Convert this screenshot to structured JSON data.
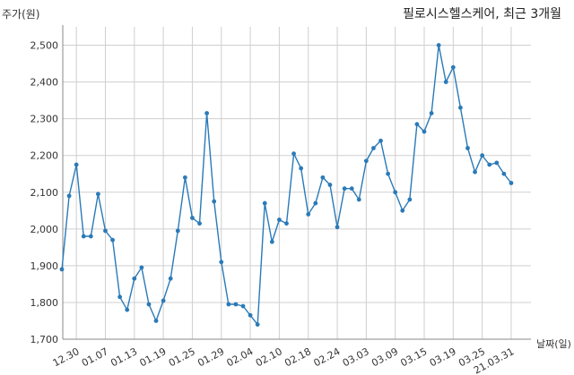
{
  "chart_data": {
    "type": "line",
    "title": "필로시스헬스케어, 최근 3개월",
    "ylabel": "주가(원)",
    "xlabel": "날짜(일)",
    "ylim": [
      1700,
      2550
    ],
    "yticks": [
      1700,
      1800,
      1900,
      2000,
      2100,
      2200,
      2300,
      2400,
      2500
    ],
    "ytick_labels": [
      "1,700",
      "1,800",
      "1,900",
      "2,000",
      "2,100",
      "2,200",
      "2,300",
      "2,400",
      "2,500"
    ],
    "xticks": [
      {
        "index": 2,
        "label": "12.30"
      },
      {
        "index": 6,
        "label": "01.07"
      },
      {
        "index": 10,
        "label": "01.13"
      },
      {
        "index": 14,
        "label": "01.19"
      },
      {
        "index": 18,
        "label": "01.25"
      },
      {
        "index": 22,
        "label": "01.29"
      },
      {
        "index": 26,
        "label": "02.04"
      },
      {
        "index": 30,
        "label": "02.10"
      },
      {
        "index": 34,
        "label": "02.18"
      },
      {
        "index": 38,
        "label": "02.24"
      },
      {
        "index": 42,
        "label": "03.03"
      },
      {
        "index": 46,
        "label": "03.09"
      },
      {
        "index": 50,
        "label": "03.15"
      },
      {
        "index": 54,
        "label": "03.19"
      },
      {
        "index": 58,
        "label": "03.25"
      },
      {
        "index": 62,
        "label": "21.03.31"
      }
    ],
    "grid": true,
    "line_color": "#2a7ab8",
    "series": [
      {
        "values": [
          1890,
          2090,
          2175,
          1980,
          1980,
          2095,
          1995,
          1970,
          1815,
          1780,
          1865,
          1895,
          1795,
          1750,
          1805,
          1865,
          1995,
          2140,
          2030,
          2015,
          2315,
          2075,
          1910,
          1795,
          1795,
          1790,
          1765,
          1740,
          2070,
          1965,
          2025,
          2015,
          2205,
          2165,
          2040,
          2070,
          2140,
          2120,
          2005,
          2110,
          2110,
          2080,
          2185,
          2220,
          2240,
          2150,
          2100,
          2050,
          2080,
          2285,
          2265,
          2315,
          2500,
          2400,
          2440,
          2330,
          2220,
          2155,
          2200,
          2175,
          2180,
          2150,
          2125
        ]
      }
    ]
  }
}
